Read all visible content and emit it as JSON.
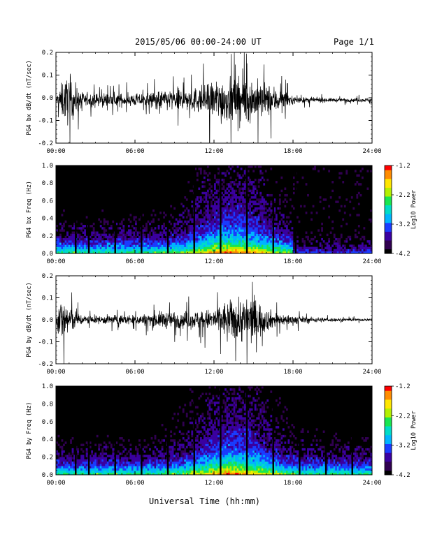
{
  "header": {
    "title": "2015/05/06  00:00-24:00 UT",
    "page": "Page 1/1"
  },
  "footer": {
    "xlabel": "Universal Time (hh:mm)"
  },
  "colors": {
    "trace": "#000000",
    "background": "#ffffff",
    "spectrogram_low": "#000000",
    "spectrogram_scale": [
      "#000000",
      "#300050",
      "#3a00a0",
      "#1a3cff",
      "#00b4ff",
      "#00dcc8",
      "#19e650",
      "#b4f000",
      "#ffe600",
      "#ff8c00",
      "#ff0000"
    ]
  },
  "chart_data": [
    {
      "type": "line",
      "id": "bx-timeseries",
      "ylabel": "PG4 bx dB/dt (nT/sec)",
      "x_range_hours": [
        0,
        24
      ],
      "xticks": [
        "00:00",
        "06:00",
        "12:00",
        "18:00",
        "24:00"
      ],
      "ylim": [
        -0.2,
        0.2
      ],
      "yticks": [
        "-0.2",
        "-0.1",
        "0.0",
        "0.1",
        "0.2"
      ],
      "envelope": {
        "hours": [
          0,
          0.5,
          1,
          1.5,
          2,
          3,
          4,
          5,
          6,
          7,
          8,
          9,
          10,
          11,
          12,
          12.5,
          13,
          14,
          15,
          16,
          17,
          18,
          19,
          20,
          21,
          22,
          23,
          24
        ],
        "amplitude": [
          0.03,
          0.15,
          0.2,
          0.12,
          0.06,
          0.05,
          0.06,
          0.05,
          0.05,
          0.06,
          0.08,
          0.09,
          0.09,
          0.11,
          0.15,
          0.2,
          0.17,
          0.19,
          0.17,
          0.13,
          0.1,
          0.03,
          0.02,
          0.02,
          0.015,
          0.015,
          0.015,
          0.015
        ]
      },
      "baseline": -0.01
    },
    {
      "type": "heatmap",
      "id": "bx-spectrogram",
      "ylabel": "PG4 bx Freq (Hz)",
      "x_range_hours": [
        0,
        24
      ],
      "xticks": [
        "00:00",
        "06:00",
        "12:00",
        "18:00",
        "24:00"
      ],
      "ylim": [
        0.0,
        1.0
      ],
      "yticks": [
        "0.0",
        "0.2",
        "0.4",
        "0.6",
        "0.8",
        "1.0"
      ],
      "colorbar": {
        "label": "Log10 Power",
        "range": [
          -4.2,
          -1.2
        ],
        "ticks": [
          "-1.2",
          "-2.2",
          "-3.2",
          "-4.2"
        ]
      },
      "quiet_after_hour": 18,
      "gap_hours": [
        1.5,
        2.5,
        4.5,
        6.5,
        8.5,
        10.5,
        12.5,
        14.5,
        16.5,
        18.2
      ]
    },
    {
      "type": "line",
      "id": "by-timeseries",
      "ylabel": "PG4 by dB/dt (nT/sec)",
      "x_range_hours": [
        0,
        24
      ],
      "xticks": [
        "00:00",
        "06:00",
        "12:00",
        "18:00",
        "24:00"
      ],
      "ylim": [
        -0.2,
        0.2
      ],
      "yticks": [
        "-0.2",
        "-0.1",
        "0.0",
        "0.1",
        "0.2"
      ],
      "envelope": {
        "hours": [
          0,
          0.5,
          1,
          1.5,
          2,
          3,
          4,
          5,
          6,
          7,
          8,
          9,
          10,
          11,
          12,
          12.5,
          13,
          14,
          15,
          16,
          17,
          18,
          19,
          20,
          21,
          22,
          23,
          24
        ],
        "amplitude": [
          0.05,
          0.2,
          0.14,
          0.07,
          0.04,
          0.03,
          0.04,
          0.04,
          0.04,
          0.05,
          0.07,
          0.07,
          0.07,
          0.08,
          0.09,
          0.14,
          0.15,
          0.19,
          0.2,
          0.09,
          0.05,
          0.04,
          0.025,
          0.02,
          0.015,
          0.012,
          0.01,
          0.01
        ]
      },
      "baseline": 0.0
    },
    {
      "type": "heatmap",
      "id": "by-spectrogram",
      "ylabel": "PG4 by Freq (Hz)",
      "x_range_hours": [
        0,
        24
      ],
      "xticks": [
        "00:00",
        "06:00",
        "12:00",
        "18:00",
        "24:00"
      ],
      "ylim": [
        0.0,
        1.0
      ],
      "yticks": [
        "0.0",
        "0.2",
        "0.4",
        "0.6",
        "0.8",
        "1.0"
      ],
      "colorbar": {
        "label": "Log10 Power",
        "range": [
          -4.2,
          -1.2
        ],
        "ticks": [
          "-1.2",
          "-2.2",
          "-3.2",
          "-4.2"
        ]
      },
      "quiet_after_hour": 24,
      "gap_hours": [
        1.5,
        2.5,
        4.5,
        6.5,
        8.5,
        10.5,
        12.5,
        14.5,
        16.5,
        18.5,
        20.5,
        22.5
      ]
    }
  ]
}
